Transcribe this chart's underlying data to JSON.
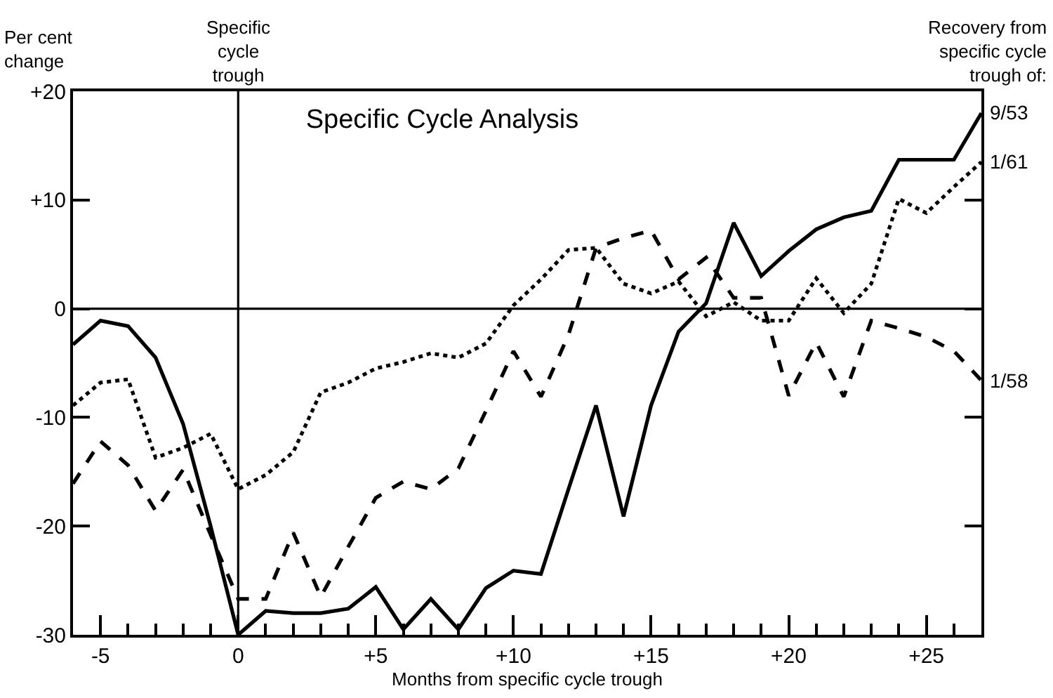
{
  "chart_data": {
    "type": "line",
    "title": "Specific Cycle Analysis",
    "xlabel": "Months from specific cycle trough",
    "ylabel": "Per cent\nchange",
    "legend_title": "Recovery from\nspecific cycle\ntrough of:",
    "x": [
      -6,
      -5,
      -4,
      -3,
      -2,
      -1,
      0,
      1,
      2,
      3,
      4,
      5,
      6,
      7,
      8,
      9,
      10,
      11,
      12,
      13,
      14,
      15,
      16,
      17,
      18,
      19,
      20,
      21,
      22,
      23,
      24,
      25,
      26,
      27
    ],
    "series": [
      {
        "name": "9/53",
        "color": "#000000",
        "line_style": "solid",
        "values": [
          -3.3,
          -1.1,
          -1.6,
          -4.5,
          -10.6,
          -20,
          -30,
          -27.8,
          -28,
          -28,
          -27.6,
          -25.6,
          -29.5,
          -26.7,
          -29.5,
          -25.7,
          -24.1,
          -24.4,
          -16.6,
          -8.9,
          -19.1,
          -8.9,
          -2.1,
          0.5,
          7.9,
          3.0,
          5.3,
          7.3,
          8.4,
          9.0,
          13.7,
          13.7,
          13.7,
          18.0
        ]
      },
      {
        "name": "1/61",
        "color": "#000000",
        "line_style": "dotted",
        "values": [
          -8.9,
          -6.8,
          -6.5,
          -13.7,
          -12.8,
          -11.5,
          -16.6,
          -15.3,
          -13.2,
          -7.7,
          -6.8,
          -5.5,
          -4.9,
          -4.1,
          -4.5,
          -3.2,
          0.3,
          2.7,
          5.4,
          5.6,
          2.3,
          1.4,
          2.5,
          -0.7,
          0.6,
          -1.1,
          -1.1,
          2.8,
          -0.4,
          2.3,
          10.1,
          8.8,
          11.2,
          13.5
        ]
      },
      {
        "name": "1/58",
        "color": "#000000",
        "line_style": "dashed",
        "values": [
          -16.1,
          -12.2,
          -14.4,
          -18.6,
          -14.8,
          -20.8,
          -26.7,
          -26.7,
          -20.6,
          -26.5,
          -21.9,
          -17.4,
          -15.9,
          -16.6,
          -14.7,
          -9.4,
          -3.9,
          -8.1,
          -2.4,
          5.6,
          6.5,
          7.2,
          2.7,
          4.7,
          1.0,
          1.0,
          -8.0,
          -3.1,
          -8.1,
          -1.1,
          -1.8,
          -2.6,
          -3.9,
          -6.6
        ]
      }
    ],
    "xlim": [
      -6,
      27
    ],
    "xticks": [
      {
        "value": -6,
        "label": null
      },
      {
        "value": -5,
        "label": "-5"
      },
      {
        "value": -4,
        "label": null
      },
      {
        "value": -3,
        "label": null
      },
      {
        "value": -2,
        "label": null
      },
      {
        "value": -1,
        "label": null
      },
      0,
      {
        "value": 1,
        "label": null
      },
      {
        "value": 2,
        "label": null
      },
      {
        "value": 3,
        "label": null
      },
      {
        "value": 4,
        "label": null
      },
      {
        "value": 5,
        "label": "+5"
      },
      {
        "value": 6,
        "label": null
      },
      {
        "value": 7,
        "label": null
      },
      {
        "value": 8,
        "label": null
      },
      {
        "value": 9,
        "label": null
      },
      {
        "value": 10,
        "label": "+10"
      },
      {
        "value": 11,
        "label": null
      },
      {
        "value": 12,
        "label": null
      },
      {
        "value": 13,
        "label": null
      },
      {
        "value": 14,
        "label": null
      },
      {
        "value": 15,
        "label": "+15"
      },
      {
        "value": 16,
        "label": null
      },
      {
        "value": 17,
        "label": null
      },
      {
        "value": 18,
        "label": null
      },
      {
        "value": 19,
        "label": null
      },
      {
        "value": 20,
        "label": "+20"
      },
      {
        "value": 21,
        "label": null
      },
      {
        "value": 22,
        "label": null
      },
      {
        "value": 23,
        "label": null
      },
      {
        "value": 24,
        "label": null
      },
      {
        "value": 25,
        "label": "+25"
      },
      {
        "value": 26,
        "label": null
      },
      {
        "value": 27,
        "label": null
      }
    ],
    "ylim": [
      -30,
      20
    ],
    "yticks": [
      -30,
      -20,
      -10,
      0,
      {
        "value": 10,
        "label": "+10"
      },
      {
        "value": 20,
        "label": "+20"
      }
    ],
    "ref_lines": [
      {
        "axis": "x",
        "value": 0,
        "label": "Specific\ncycle\ntrough"
      },
      {
        "axis": "y",
        "value": 0,
        "label": null
      }
    ],
    "grid": false,
    "legend": false,
    "marker": "none"
  }
}
